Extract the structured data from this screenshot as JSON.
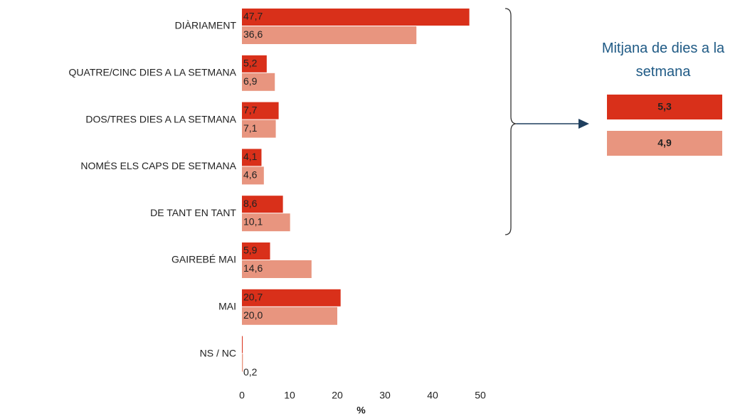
{
  "chart_data": {
    "type": "hbar",
    "categories": [
      "DIÀRIAMENT",
      "QUATRE/CINC DIES A LA SETMANA",
      "DOS/TRES DIES A LA SETMANA",
      "NOMÉS ELS CAPS DE SETMANA",
      "DE TANT EN TANT",
      "GAIREBÉ MAI",
      "MAI",
      "NS / NC"
    ],
    "series": [
      {
        "color": "#d9301a",
        "values": [
          47.7,
          5.2,
          7.7,
          4.1,
          8.6,
          5.9,
          20.7,
          0.1
        ],
        "value_labels": [
          "47,7",
          "5,2",
          "7,7",
          "4,1",
          "8,6",
          "5,9",
          "20,7",
          null
        ]
      },
      {
        "color": "#e8957f",
        "values": [
          36.6,
          6.9,
          7.1,
          4.6,
          10.1,
          14.6,
          20.0,
          0.2
        ],
        "value_labels": [
          "36,6",
          "6,9",
          "7,1",
          "4,6",
          "10,1",
          "14,6",
          "20,0",
          "0,2"
        ]
      }
    ],
    "xlim": [
      0,
      50
    ],
    "xticks": [
      0,
      10,
      20,
      30,
      40,
      50
    ],
    "xlabel": "%",
    "summary": {
      "title": "Mitjana de dies a la setmana",
      "values": [
        5.3,
        4.9
      ],
      "value_labels": [
        "5,3",
        "4,9"
      ]
    }
  }
}
